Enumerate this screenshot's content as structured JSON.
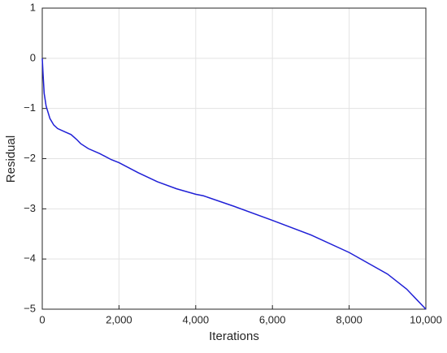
{
  "chart_data": {
    "type": "line",
    "xlabel": "Iterations",
    "ylabel": "Residual",
    "x": [
      0,
      20,
      50,
      100,
      200,
      300,
      400,
      600,
      750,
      900,
      1000,
      1200,
      1500,
      1800,
      2000,
      2500,
      3000,
      3500,
      4000,
      4200,
      5000,
      6000,
      7000,
      8000,
      9000,
      9500,
      10000
    ],
    "values": [
      0,
      -0.3,
      -0.7,
      -0.95,
      -1.2,
      -1.33,
      -1.4,
      -1.47,
      -1.52,
      -1.62,
      -1.7,
      -1.8,
      -1.9,
      -2.02,
      -2.08,
      -2.28,
      -2.46,
      -2.6,
      -2.71,
      -2.74,
      -2.95,
      -3.23,
      -3.52,
      -3.87,
      -4.3,
      -4.6,
      -5
    ],
    "color": "#1f1fd6",
    "xlim": [
      0,
      10000
    ],
    "xticks": [
      0,
      {
        "value": 2000,
        "label": "2,000"
      },
      {
        "value": 4000,
        "label": "4,000"
      },
      {
        "value": 6000,
        "label": "6,000"
      },
      {
        "value": 8000,
        "label": "8,000"
      },
      {
        "value": 10000,
        "label": "10,000"
      }
    ],
    "ylim": [
      -5,
      1
    ],
    "yticks": [
      1,
      0,
      {
        "value": -1,
        "label": "−1"
      },
      {
        "value": -2,
        "label": "−2"
      },
      {
        "value": -3,
        "label": "−3"
      },
      {
        "value": -4,
        "label": "−4"
      },
      {
        "value": -5,
        "label": "−5"
      }
    ],
    "grid": true
  }
}
